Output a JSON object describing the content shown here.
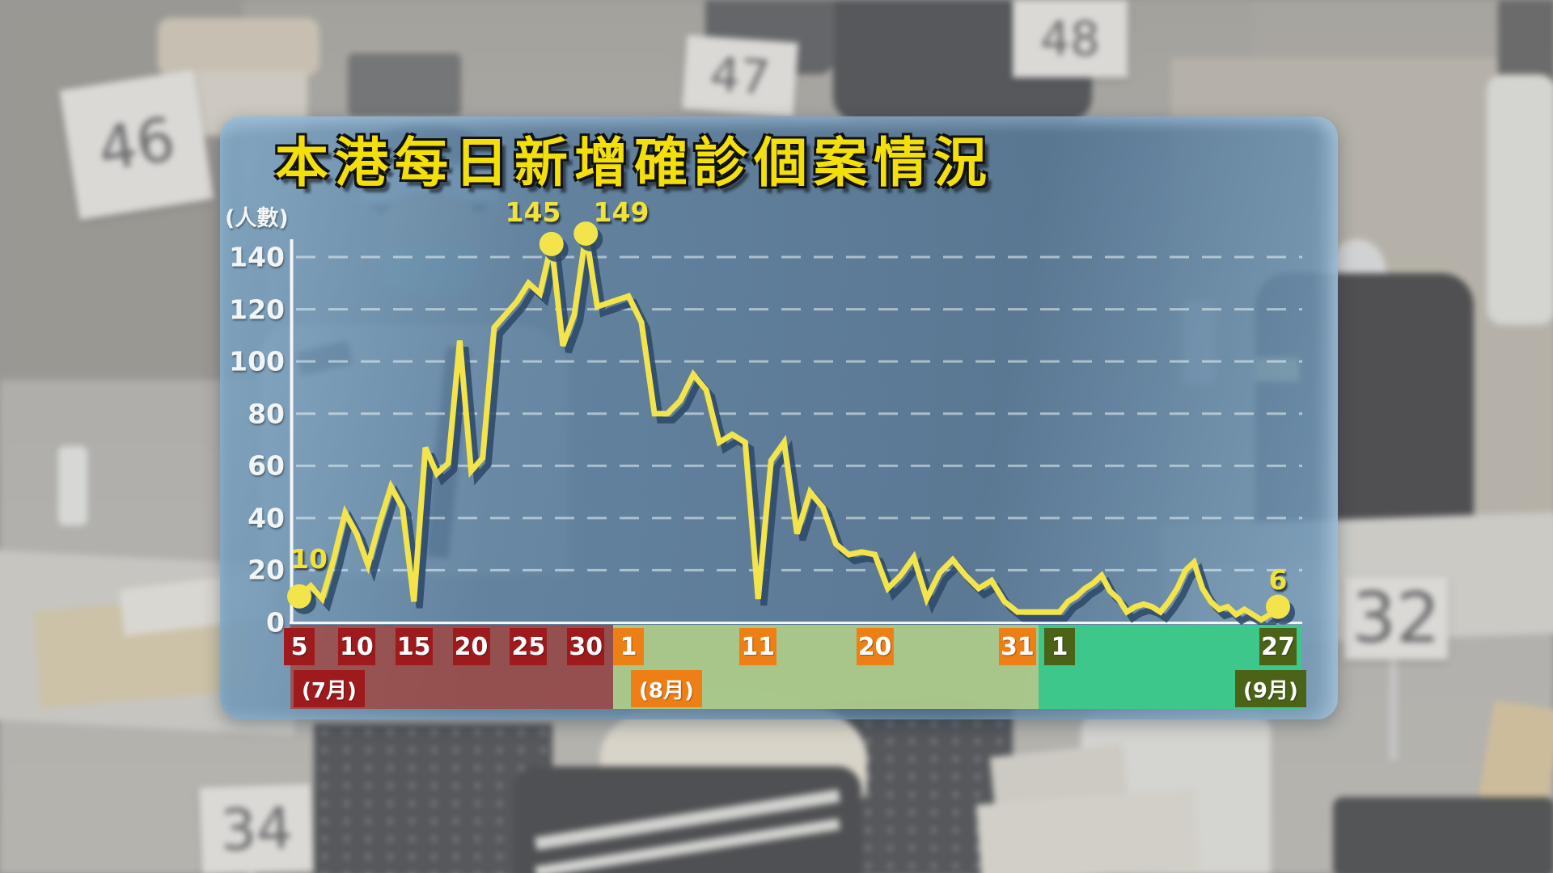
{
  "title": "本港每日新增確診個案情況",
  "chart": {
    "y_unit": "(人數)",
    "y_ticks": [
      0,
      20,
      40,
      60,
      80,
      100,
      120,
      140
    ],
    "annotations": {
      "start": {
        "label": "10"
      },
      "peak1": {
        "label": "145"
      },
      "peak2": {
        "label": "149"
      },
      "end": {
        "label": "6"
      }
    }
  },
  "chart_data": {
    "type": "line",
    "title": "本港每日新增確診個案情況",
    "ylabel": "(人數)",
    "ylim": [
      0,
      150
    ],
    "grid": "dashed-horizontal",
    "series_name": "每日新增確診個案",
    "months": [
      {
        "label": "(7月)",
        "month": "7月",
        "start_day": 5,
        "tick_days": [
          5,
          10,
          15,
          20,
          25,
          30
        ],
        "strip_color": "rgba(170,58,46,0.70)",
        "box_color": "#9e1a1d",
        "values": [
          10,
          14,
          9,
          24,
          42,
          34,
          22,
          38,
          52,
          44,
          8,
          67,
          57,
          61,
          108,
          58,
          63,
          113,
          118,
          123,
          130,
          126,
          145,
          106,
          118,
          149,
          121
        ]
      },
      {
        "label": "(8月)",
        "month": "8月",
        "start_day": 1,
        "tick_days": [
          1,
          11,
          20,
          31
        ],
        "strip_color": "rgba(172,202,137,0.95)",
        "box_color": "#ee7f15",
        "values": [
          125,
          115,
          80,
          80,
          85,
          95,
          89,
          69,
          72,
          69,
          9,
          62,
          69,
          34,
          50,
          44,
          30,
          26,
          27,
          26,
          13,
          18,
          25,
          9,
          19,
          24,
          18,
          13,
          16,
          8,
          4
        ]
      },
      {
        "label": "(9月)",
        "month": "9月",
        "start_day": 1,
        "tick_days": [
          1,
          27
        ],
        "strip_color": "#3ec78b",
        "box_color": "#4a6316",
        "values": [
          4,
          8,
          10,
          13,
          15,
          18,
          12,
          9,
          4,
          6,
          7,
          6,
          4,
          8,
          13,
          20,
          23,
          13,
          8,
          5,
          6,
          3,
          5,
          3,
          1,
          3,
          6
        ]
      }
    ],
    "highlight_points": [
      {
        "month_index": 0,
        "day": 5,
        "value": 10,
        "label": "10"
      },
      {
        "month_index": 0,
        "day": 27,
        "value": 145,
        "label": "145"
      },
      {
        "month_index": 0,
        "day": 30,
        "value": 149,
        "label": "149"
      },
      {
        "month_index": 2,
        "day": 27,
        "value": 6,
        "label": "6"
      }
    ],
    "colors": {
      "line": "#f2e44a",
      "line_shadow": "#2b4868",
      "axis": "#f2f6f6",
      "gridline": "rgba(235,245,245,0.55)",
      "title_yellow": "#f3df0b",
      "panel_blue": "#5c86ab"
    }
  },
  "background": {
    "cards": [
      {
        "number": "46"
      },
      {
        "number": "47"
      },
      {
        "number": "48"
      },
      {
        "number": "32"
      },
      {
        "number": "34"
      }
    ]
  }
}
